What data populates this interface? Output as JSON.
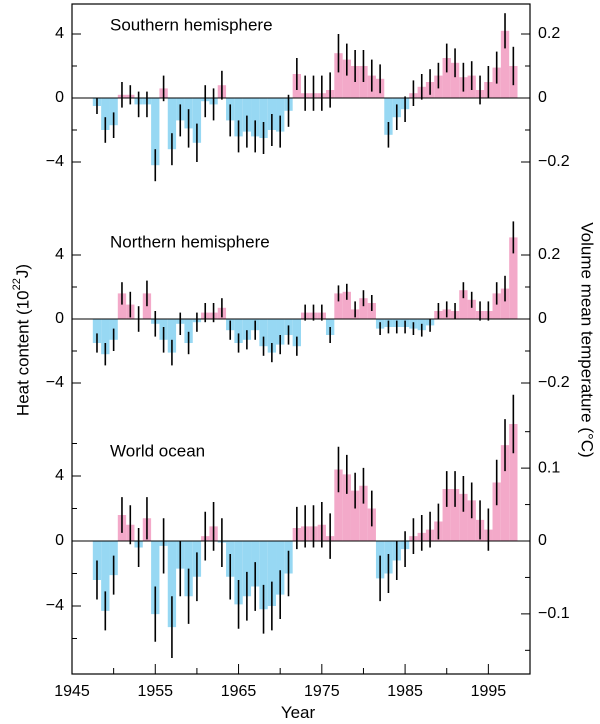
{
  "figure": {
    "xlabel": "Year",
    "ylabel_left": "Heat content (10²²J)",
    "ylabel_right": "Volume mean temperature (°C)",
    "x_ticks": [
      "1945",
      "1955",
      "1965",
      "1975",
      "1985",
      "1995"
    ]
  },
  "chart_data": [
    {
      "type": "bar",
      "title": "Southern hemisphere",
      "x": [
        1948,
        1949,
        1950,
        1951,
        1952,
        1953,
        1954,
        1955,
        1956,
        1957,
        1958,
        1959,
        1960,
        1961,
        1962,
        1963,
        1964,
        1965,
        1966,
        1967,
        1968,
        1969,
        1970,
        1971,
        1972,
        1973,
        1974,
        1975,
        1976,
        1977,
        1978,
        1979,
        1980,
        1981,
        1982,
        1983,
        1984,
        1985,
        1986,
        1987,
        1988,
        1989,
        1990,
        1991,
        1992,
        1993,
        1994,
        1995,
        1996,
        1997,
        1998
      ],
      "values": [
        -0.5,
        -2.0,
        -1.7,
        0.2,
        0.2,
        -0.4,
        -0.4,
        -4.2,
        0.6,
        -3.2,
        -1.4,
        -1.9,
        -2.8,
        -0.2,
        -0.4,
        0.8,
        -1.4,
        -2.4,
        -2.1,
        -2.4,
        -2.5,
        -2.0,
        -2.1,
        -0.8,
        1.5,
        0.3,
        0.3,
        0.3,
        0.5,
        2.8,
        2.4,
        2.0,
        2.0,
        1.4,
        1.2,
        -2.3,
        -1.2,
        -0.7,
        0.3,
        0.7,
        1.0,
        1.4,
        2.5,
        2.2,
        1.3,
        1.4,
        0.5,
        1.0,
        1.9,
        4.2,
        2.0
      ],
      "errors": [
        0.5,
        0.8,
        0.8,
        0.8,
        0.6,
        0.8,
        0.8,
        1.0,
        0.8,
        1.0,
        1.0,
        1.2,
        1.2,
        1.0,
        1.0,
        0.9,
        1.0,
        1.0,
        1.0,
        1.0,
        1.0,
        1.0,
        1.0,
        1.0,
        1.0,
        1.1,
        1.1,
        1.1,
        1.1,
        1.2,
        1.0,
        1.0,
        1.0,
        1.0,
        0.9,
        0.8,
        0.8,
        0.8,
        0.8,
        0.8,
        0.8,
        0.8,
        0.9,
        0.9,
        0.9,
        0.9,
        0.9,
        1.0,
        1.0,
        1.1,
        1.2
      ],
      "ylim": [
        -5.5,
        5.5
      ],
      "yticks": [
        -4,
        0,
        4
      ],
      "right_axis": {
        "ticks": [
          -0.2,
          0,
          0.2
        ],
        "tick_labels": [
          "−0.2",
          "0",
          "0.2"
        ],
        "ylim": [
          -0.275,
          0.275
        ]
      },
      "colors": {
        "positive": "#f3a9c9",
        "negative": "#97d8f3"
      }
    },
    {
      "type": "bar",
      "title": "Northern hemisphere",
      "x": [
        1948,
        1949,
        1950,
        1951,
        1952,
        1953,
        1954,
        1955,
        1956,
        1957,
        1958,
        1959,
        1960,
        1961,
        1962,
        1963,
        1964,
        1965,
        1966,
        1967,
        1968,
        1969,
        1970,
        1971,
        1972,
        1973,
        1974,
        1975,
        1976,
        1977,
        1978,
        1979,
        1980,
        1981,
        1982,
        1983,
        1984,
        1985,
        1986,
        1987,
        1988,
        1989,
        1990,
        1991,
        1992,
        1993,
        1994,
        1995,
        1996,
        1997,
        1998
      ],
      "values": [
        -1.5,
        -2.2,
        -1.3,
        1.6,
        0.9,
        0.0,
        1.6,
        -0.3,
        -1.3,
        -2.1,
        -0.3,
        -1.5,
        -0.2,
        0.4,
        0.4,
        0.7,
        -0.7,
        -1.5,
        -1.3,
        -0.7,
        -1.7,
        -2.1,
        -1.6,
        -1.0,
        -1.7,
        0.4,
        0.4,
        0.4,
        -1.0,
        1.6,
        1.7,
        0.6,
        1.3,
        1.0,
        -0.6,
        -0.5,
        -0.5,
        -0.5,
        -0.6,
        -0.7,
        -0.4,
        0.5,
        0.6,
        0.5,
        1.8,
        1.2,
        0.5,
        0.5,
        1.6,
        1.9,
        5.1
      ],
      "errors": [
        0.6,
        0.7,
        0.7,
        0.7,
        0.8,
        0.8,
        0.8,
        0.8,
        0.8,
        0.8,
        0.7,
        0.7,
        0.6,
        0.6,
        0.6,
        0.6,
        0.6,
        0.6,
        0.6,
        0.6,
        0.6,
        0.6,
        0.6,
        0.6,
        0.6,
        0.5,
        0.5,
        0.5,
        0.5,
        0.5,
        0.5,
        0.5,
        0.5,
        0.5,
        0.4,
        0.4,
        0.4,
        0.4,
        0.4,
        0.4,
        0.4,
        0.5,
        0.5,
        0.5,
        0.5,
        0.5,
        0.6,
        0.6,
        0.7,
        0.8,
        1.0
      ],
      "ylim": [
        -5.5,
        5.5
      ],
      "yticks": [
        -4,
        0,
        4
      ],
      "right_axis": {
        "ticks": [
          -0.2,
          0,
          0.2
        ],
        "tick_labels": [
          "−0.2",
          "0",
          "0.2"
        ],
        "ylim": [
          -0.275,
          0.275
        ]
      },
      "colors": {
        "positive": "#f3a9c9",
        "negative": "#97d8f3"
      }
    },
    {
      "type": "bar",
      "title": "World ocean",
      "x": [
        1948,
        1949,
        1950,
        1951,
        1952,
        1953,
        1954,
        1955,
        1956,
        1957,
        1958,
        1959,
        1960,
        1961,
        1962,
        1963,
        1964,
        1965,
        1966,
        1967,
        1968,
        1969,
        1970,
        1971,
        1972,
        1973,
        1974,
        1975,
        1976,
        1977,
        1978,
        1979,
        1980,
        1981,
        1982,
        1983,
        1984,
        1985,
        1986,
        1987,
        1988,
        1989,
        1990,
        1991,
        1992,
        1993,
        1994,
        1995,
        1996,
        1997,
        1998
      ],
      "values": [
        -2.4,
        -4.3,
        -2.1,
        1.6,
        1.0,
        -0.4,
        1.4,
        -4.5,
        -0.3,
        -5.3,
        -1.7,
        -3.4,
        -2.2,
        0.3,
        0.9,
        -0.1,
        -2.2,
        -3.9,
        -3.4,
        -2.8,
        -4.2,
        -4.0,
        -3.3,
        -2.0,
        0.8,
        0.9,
        0.9,
        1.0,
        0.3,
        4.4,
        4.1,
        3.1,
        3.4,
        2.0,
        -2.3,
        -2.0,
        -1.2,
        -0.5,
        0.3,
        0.5,
        0.7,
        1.2,
        3.2,
        3.2,
        2.9,
        2.5,
        1.3,
        0.7,
        3.6,
        5.9,
        7.2
      ],
      "errors": [
        1.2,
        1.2,
        1.2,
        1.1,
        1.2,
        1.2,
        1.3,
        1.7,
        1.7,
        1.9,
        1.7,
        1.7,
        1.5,
        1.5,
        1.5,
        1.5,
        1.4,
        1.5,
        1.5,
        1.5,
        1.5,
        1.5,
        1.5,
        1.4,
        1.3,
        1.3,
        1.3,
        1.4,
        1.4,
        1.4,
        1.2,
        1.1,
        1.1,
        1.1,
        1.4,
        1.2,
        1.2,
        1.1,
        1.1,
        1.1,
        1.1,
        1.1,
        1.1,
        1.1,
        1.1,
        1.1,
        1.2,
        1.3,
        1.4,
        1.6,
        1.8
      ],
      "ylim": [
        -7.4,
        7.4
      ],
      "yticks": [
        -4,
        0,
        4
      ],
      "right_axis": {
        "ticks": [
          -0.1,
          0,
          0.1
        ],
        "tick_labels": [
          "−0.1",
          "0",
          "0.1"
        ],
        "ylim": [
          -0.165,
          0.165
        ]
      },
      "colors": {
        "positive": "#f3a9c9",
        "negative": "#97d8f3"
      }
    }
  ]
}
